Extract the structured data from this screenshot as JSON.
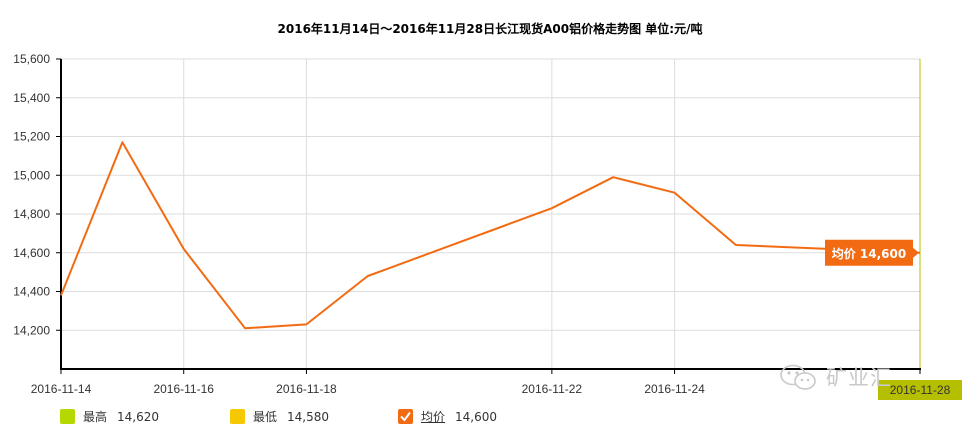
{
  "chart_data": {
    "type": "line",
    "title": "2016年11月14日～2016年11月28日长江现货A00铝价格走势图  单位:元/吨",
    "x": [
      "2016-11-14",
      "2016-11-15",
      "2016-11-16",
      "2016-11-17",
      "2016-11-18",
      "2016-11-19",
      "2016-11-22",
      "2016-11-23",
      "2016-11-24",
      "2016-11-25",
      "2016-11-28"
    ],
    "series": [
      {
        "name": "均价",
        "values": [
          14380,
          15170,
          14620,
          14210,
          14230,
          14480,
          14830,
          14990,
          14910,
          14640,
          14600
        ]
      }
    ],
    "x_tick_labels": [
      "2016-11-14",
      "2016-11-16",
      "2016-11-18",
      "2016-11-22",
      "2016-11-24",
      "2016-11-28"
    ],
    "y_tick_labels": [
      "15,600",
      "15,400",
      "15,200",
      "15,000",
      "14,800",
      "14,600",
      "14,400",
      "14,200"
    ],
    "ylim": [
      14000,
      15600
    ],
    "grid": true,
    "legend_position": "bottom-left",
    "tooltip": {
      "label": "均价 14,600"
    },
    "highlight_label": "2016-11-28",
    "colors": {
      "line": "#f26b12",
      "tooltip": "#f26b12",
      "crosshair": "#b5bf00",
      "grid": "#dddddd",
      "axis": "#000000"
    }
  },
  "legend": {
    "items": [
      {
        "label": "最高",
        "value": "14,620",
        "color": "#b5d900"
      },
      {
        "label": "最低",
        "value": "14,580",
        "color": "#f5c800"
      },
      {
        "label": "均价",
        "value": "14,600",
        "color": "#f26b12"
      }
    ]
  },
  "watermark": {
    "text": "矿业汇",
    "icon": "wechat-icon"
  }
}
